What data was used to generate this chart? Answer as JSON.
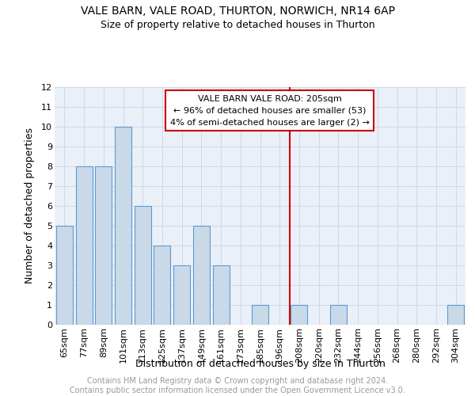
{
  "title1": "VALE BARN, VALE ROAD, THURTON, NORWICH, NR14 6AP",
  "title2": "Size of property relative to detached houses in Thurton",
  "xlabel": "Distribution of detached houses by size in Thurton",
  "ylabel": "Number of detached properties",
  "categories": [
    "65sqm",
    "77sqm",
    "89sqm",
    "101sqm",
    "113sqm",
    "125sqm",
    "137sqm",
    "149sqm",
    "161sqm",
    "173sqm",
    "185sqm",
    "196sqm",
    "208sqm",
    "220sqm",
    "232sqm",
    "244sqm",
    "256sqm",
    "268sqm",
    "280sqm",
    "292sqm",
    "304sqm"
  ],
  "values": [
    5,
    8,
    8,
    10,
    6,
    4,
    3,
    5,
    3,
    0,
    1,
    0,
    1,
    0,
    1,
    0,
    0,
    0,
    0,
    0,
    1
  ],
  "bar_color": "#c9d9e8",
  "bar_edge_color": "#5b9bd5",
  "vline_index": 12,
  "reference_label": "VALE BARN VALE ROAD: 205sqm",
  "annotation_line1": "← 96% of detached houses are smaller (53)",
  "annotation_line2": "4% of semi-detached houses are larger (2) →",
  "annotation_box_color": "#ffffff",
  "annotation_box_edge": "#cc0000",
  "vline_color": "#cc0000",
  "ylim_max": 12,
  "yticks": [
    0,
    1,
    2,
    3,
    4,
    5,
    6,
    7,
    8,
    9,
    10,
    11,
    12
  ],
  "grid_color": "#d0d8e8",
  "bg_color": "#eaf0f8",
  "footer": "Contains HM Land Registry data © Crown copyright and database right 2024.\nContains public sector information licensed under the Open Government Licence v3.0.",
  "footer_color": "#999999",
  "title1_fontsize": 10,
  "title2_fontsize": 9,
  "xlabel_fontsize": 9,
  "ylabel_fontsize": 9,
  "tick_fontsize": 8,
  "annot_fontsize": 8
}
